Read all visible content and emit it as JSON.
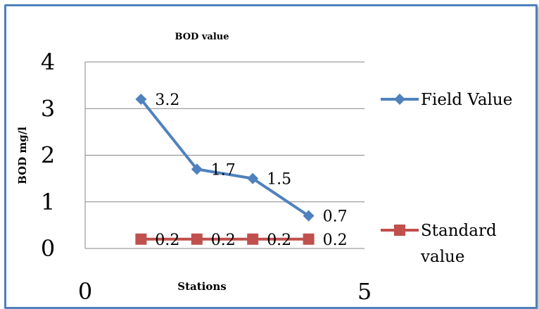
{
  "chart_data": {
    "type": "scatter",
    "title": "BOD value",
    "xlabel": "Stations",
    "ylabel": "BOD mg/l",
    "xlim": [
      0,
      5
    ],
    "ylim": [
      0,
      4
    ],
    "x_ticks": [
      "0",
      "5"
    ],
    "y_ticks": [
      "0",
      "1",
      "2",
      "3",
      "4"
    ],
    "grid": "horizontal",
    "legend_position": "right",
    "series": [
      {
        "name": "Field Value",
        "color": "#4f81bd",
        "marker": "diamond",
        "x": [
          1,
          2,
          3,
          4
        ],
        "y": [
          3.2,
          1.7,
          1.5,
          0.7
        ],
        "labels": [
          "3.2",
          "1.7",
          "1.5",
          "0.7"
        ]
      },
      {
        "name": "Standard value",
        "color": "#c0504d",
        "marker": "square",
        "x": [
          1,
          2,
          3,
          4
        ],
        "y": [
          0.2,
          0.2,
          0.2,
          0.2
        ],
        "labels": [
          "0.2",
          "0.2",
          "0.2",
          "0.2"
        ]
      }
    ]
  }
}
